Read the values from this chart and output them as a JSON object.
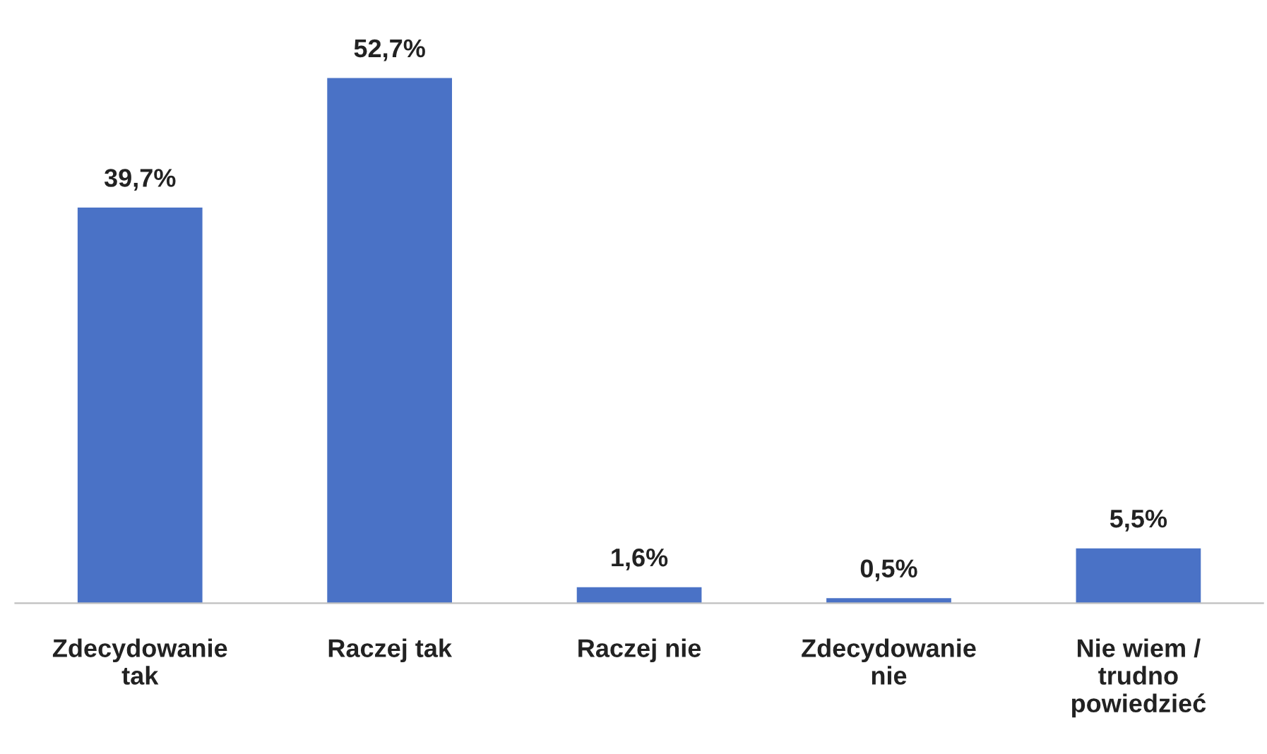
{
  "chart_data": {
    "type": "bar",
    "categories": [
      "Zdecydowanie tak",
      "Raczej tak",
      "Raczej nie",
      "Zdecydowanie nie",
      "Nie wiem / trudno powiedzieć"
    ],
    "values": [
      39.7,
      52.7,
      1.6,
      0.5,
      5.5
    ],
    "value_labels": [
      "39,7%",
      "52,7%",
      "1,6%",
      "0,5%",
      "5,5%"
    ],
    "color": "#4a72c6",
    "grid": false,
    "legend": false
  }
}
